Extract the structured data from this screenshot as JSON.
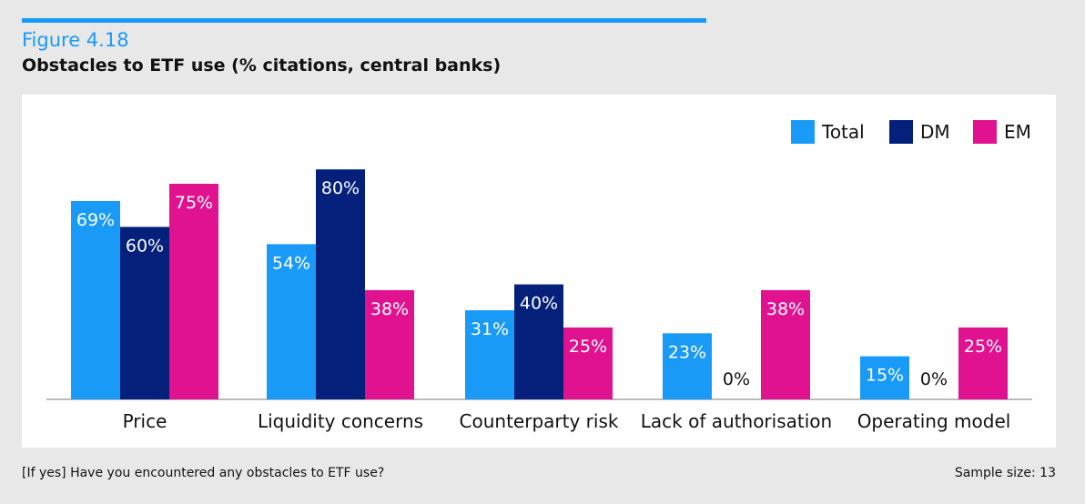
{
  "figure": {
    "label": "Figure 4.18",
    "title": "Obstacles to ETF use (% citations, central banks)"
  },
  "footer": {
    "question": "[If yes] Have you encountered any obstacles to ETF use?",
    "sample": "Sample size: 13"
  },
  "colors": {
    "accent": "#1a9af7",
    "Total": "#1a9af7",
    "DM": "#04207a",
    "EM": "#e0128f"
  },
  "chart_data": {
    "type": "bar",
    "title": "Obstacles to ETF use (% citations, central banks)",
    "categories": [
      "Price",
      "Liquidity concerns",
      "Counterparty risk",
      "Lack of authorisation",
      "Operating model"
    ],
    "series": [
      {
        "name": "Total",
        "values": [
          69,
          54,
          31,
          23,
          15
        ],
        "labels": [
          "69%",
          "54%",
          "31%",
          "23%",
          "15%"
        ]
      },
      {
        "name": "DM",
        "values": [
          60,
          80,
          40,
          0,
          0
        ],
        "labels": [
          "60%",
          "80%",
          "40%",
          "0%",
          "0%"
        ]
      },
      {
        "name": "EM",
        "values": [
          75,
          38,
          25,
          38,
          25
        ],
        "labels": [
          "75%",
          "38%",
          "25%",
          "38%",
          "25%"
        ]
      }
    ],
    "legend": [
      "Total",
      "DM",
      "EM"
    ],
    "legend_position": "top-right",
    "ylim": [
      0,
      85
    ],
    "grid": false
  }
}
